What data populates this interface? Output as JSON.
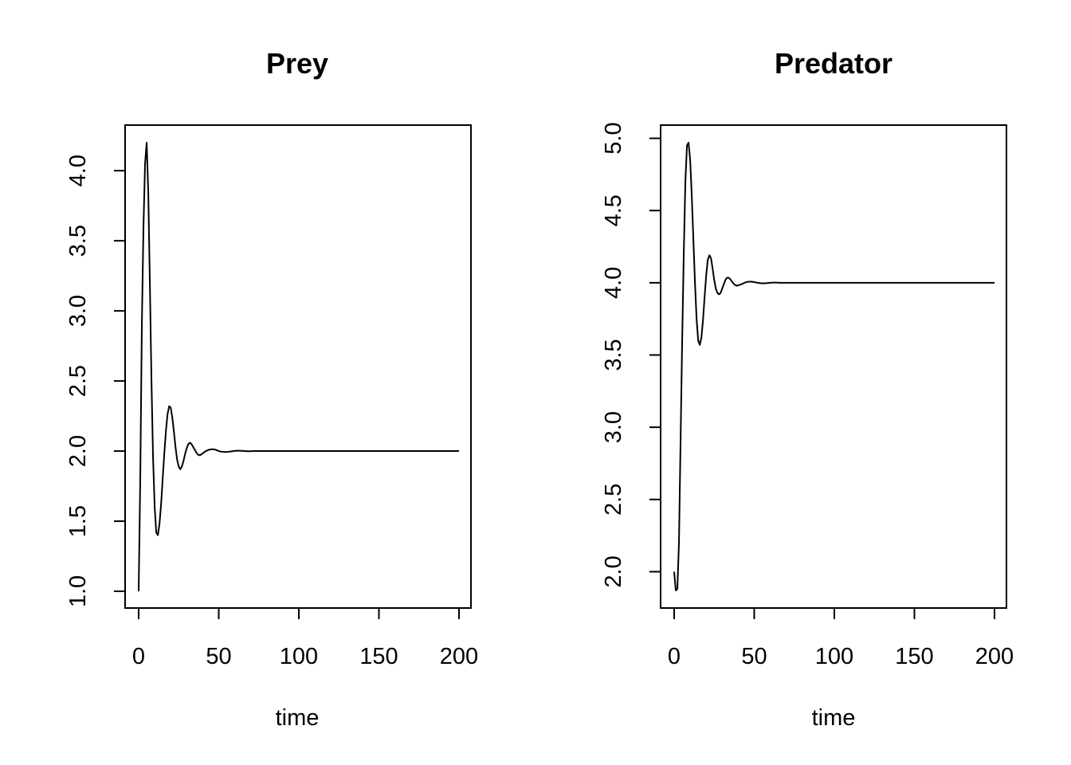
{
  "chart_data": [
    {
      "type": "line",
      "title": "Prey",
      "xlabel": "time",
      "ylabel": "",
      "xlim": [
        0,
        200
      ],
      "ylim": [
        1.0,
        4.2
      ],
      "xticks": [
        0,
        50,
        100,
        150,
        200
      ],
      "xtick_labels": [
        "0",
        "50",
        "100",
        "150",
        "200"
      ],
      "yticks": [
        1.0,
        1.5,
        2.0,
        2.5,
        3.0,
        3.5,
        4.0
      ],
      "ytick_labels": [
        "1.0",
        "1.5",
        "2.0",
        "2.5",
        "3.0",
        "3.5",
        "4.0"
      ],
      "grid": false,
      "legend": "none",
      "series": [
        {
          "x": [
            0,
            1,
            2,
            3,
            4,
            5,
            6,
            7,
            8,
            9,
            10,
            11,
            12,
            13,
            14,
            15,
            16,
            17,
            18,
            19,
            20,
            21,
            22,
            23,
            24,
            25,
            26,
            27,
            28,
            29,
            30,
            31,
            32,
            33,
            34,
            35,
            36,
            37,
            38,
            39,
            40,
            42,
            44,
            46,
            48,
            50,
            52,
            54,
            56,
            58,
            60,
            62,
            64,
            66,
            68,
            70,
            72,
            74,
            76,
            78,
            80,
            85,
            90,
            100,
            120,
            140,
            160,
            180,
            200
          ],
          "y": [
            1.0,
            1.8,
            2.9,
            3.6,
            4.05,
            4.2,
            3.85,
            3.2,
            2.5,
            1.95,
            1.6,
            1.42,
            1.4,
            1.48,
            1.62,
            1.8,
            1.98,
            2.14,
            2.26,
            2.32,
            2.31,
            2.24,
            2.14,
            2.03,
            1.94,
            1.89,
            1.87,
            1.89,
            1.93,
            1.98,
            2.02,
            2.05,
            2.06,
            2.05,
            2.03,
            2.01,
            1.99,
            1.975,
            1.97,
            1.975,
            1.985,
            2.0,
            2.01,
            2.013,
            2.01,
            2.0,
            1.995,
            1.993,
            1.995,
            1.998,
            2.001,
            2.003,
            2.002,
            2.0,
            1.999,
            1.999,
            2.0,
            2.0,
            2.0,
            2.0,
            2.0,
            2.0,
            2.0,
            2.0,
            2.0,
            2.0,
            2.0,
            2.0,
            2.0
          ]
        }
      ]
    },
    {
      "type": "line",
      "title": "Predator",
      "xlabel": "time",
      "ylabel": "",
      "xlim": [
        0,
        200
      ],
      "ylim": [
        1.87,
        4.97
      ],
      "xticks": [
        0,
        50,
        100,
        150,
        200
      ],
      "xtick_labels": [
        "0",
        "50",
        "100",
        "150",
        "200"
      ],
      "yticks": [
        2.0,
        2.5,
        3.0,
        3.5,
        4.0,
        4.5,
        5.0
      ],
      "ytick_labels": [
        "2.0",
        "2.5",
        "3.0",
        "3.5",
        "4.0",
        "4.5",
        "5.0"
      ],
      "grid": false,
      "legend": "none",
      "series": [
        {
          "x": [
            0,
            1,
            2,
            3,
            4,
            5,
            6,
            7,
            8,
            9,
            10,
            11,
            12,
            13,
            14,
            15,
            16,
            17,
            18,
            19,
            20,
            21,
            22,
            23,
            24,
            25,
            26,
            27,
            28,
            29,
            30,
            31,
            32,
            33,
            34,
            35,
            36,
            37,
            38,
            39,
            40,
            42,
            44,
            46,
            48,
            50,
            52,
            54,
            56,
            58,
            60,
            62,
            64,
            66,
            68,
            70,
            72,
            74,
            76,
            78,
            80,
            85,
            90,
            100,
            120,
            140,
            160,
            180,
            200
          ],
          "y": [
            2.0,
            1.87,
            1.88,
            2.2,
            2.9,
            3.6,
            4.2,
            4.7,
            4.95,
            4.97,
            4.85,
            4.6,
            4.3,
            4.0,
            3.75,
            3.6,
            3.57,
            3.62,
            3.74,
            3.9,
            4.05,
            4.16,
            4.19,
            4.17,
            4.1,
            4.02,
            3.96,
            3.93,
            3.92,
            3.93,
            3.96,
            3.99,
            4.02,
            4.035,
            4.035,
            4.025,
            4.01,
            3.995,
            3.985,
            3.98,
            3.982,
            3.99,
            4.0,
            4.007,
            4.008,
            4.005,
            4.0,
            3.997,
            3.996,
            3.998,
            4.0,
            4.001,
            4.001,
            4.0,
            4.0,
            4.0,
            4.0,
            4.0,
            4.0,
            4.0,
            4.0,
            4.0,
            4.0,
            4.0,
            4.0,
            4.0,
            4.0,
            4.0,
            4.0
          ]
        }
      ]
    }
  ]
}
